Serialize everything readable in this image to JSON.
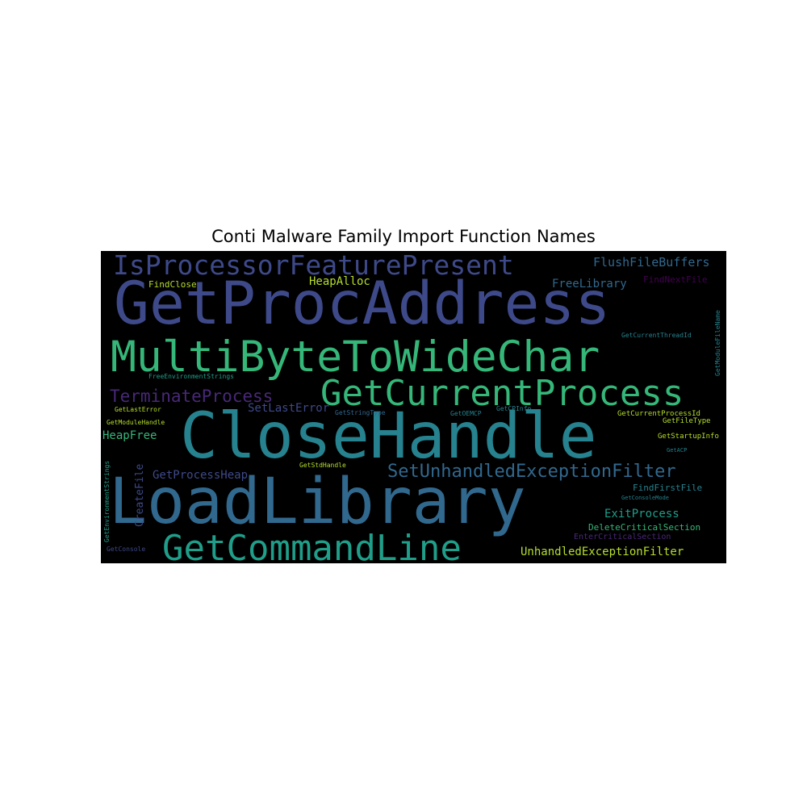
{
  "title": "Conti Malware Family Import Function Names",
  "colors": {
    "background": "#000000",
    "deep_purple": "#440154",
    "purple": "#482878",
    "indigo": "#3e4989",
    "blue": "#31688e",
    "teal": "#26828e",
    "green_teal": "#1f9e89",
    "green": "#35b779",
    "yellow_green": "#b5de2b"
  },
  "words": {
    "GetProcAddress": "GetProcAddress",
    "CloseHandle": "CloseHandle",
    "LoadLibrary": "LoadLibrary",
    "MultiByteToWideChar": "MultiByteToWideChar",
    "GetCurrentProcess": "GetCurrentProcess",
    "GetCommandLine": "GetCommandLine",
    "IsProcessorFeaturePresent": "IsProcessorFeaturePresent",
    "TerminateProcess": "TerminateProcess",
    "SetUnhandledExceptionFilter": "SetUnhandledExceptionFilter",
    "FlushFileBuffers": "FlushFileBuffers",
    "FreeLibrary": "FreeLibrary",
    "HeapAlloc": "HeapAlloc",
    "FindClose": "FindClose",
    "FindNextFile": "FindNextFile",
    "SetLastError": "SetLastError",
    "HeapFree": "HeapFree",
    "GetProcessHeap": "GetProcessHeap",
    "ExitProcess": "ExitProcess",
    "UnhandledExceptionFilter": "UnhandledExceptionFilter",
    "FindFirstFile": "FindFirstFile",
    "DeleteCriticalSection": "DeleteCriticalSection",
    "EnterCriticalSection": "EnterCriticalSection",
    "CreateFile": "CreateFile",
    "GetCurrentThreadId": "GetCurrentThreadId",
    "GetModuleFileName": "GetModuleFileName",
    "FreeEnvironmentStrings": "FreeEnvironmentStrings",
    "GetLastError": "GetLastError",
    "GetStringType": "GetStringType",
    "GetOEMCP": "GetOEMCP",
    "GetCPInfo": "GetCPInfo",
    "GetCurrentProcessId": "GetCurrentProcessId",
    "GetModuleHandle": "GetModuleHandle",
    "GetFileType": "GetFileType",
    "GetStartupInfo": "GetStartupInfo",
    "GetACP": "GetACP",
    "GetStdHandle": "GetStdHandle",
    "GetConsoleMode": "GetConsoleMode",
    "GetEnvironmentStrings": "GetEnvironmentStrings",
    "GetConsole": "GetConsole"
  }
}
